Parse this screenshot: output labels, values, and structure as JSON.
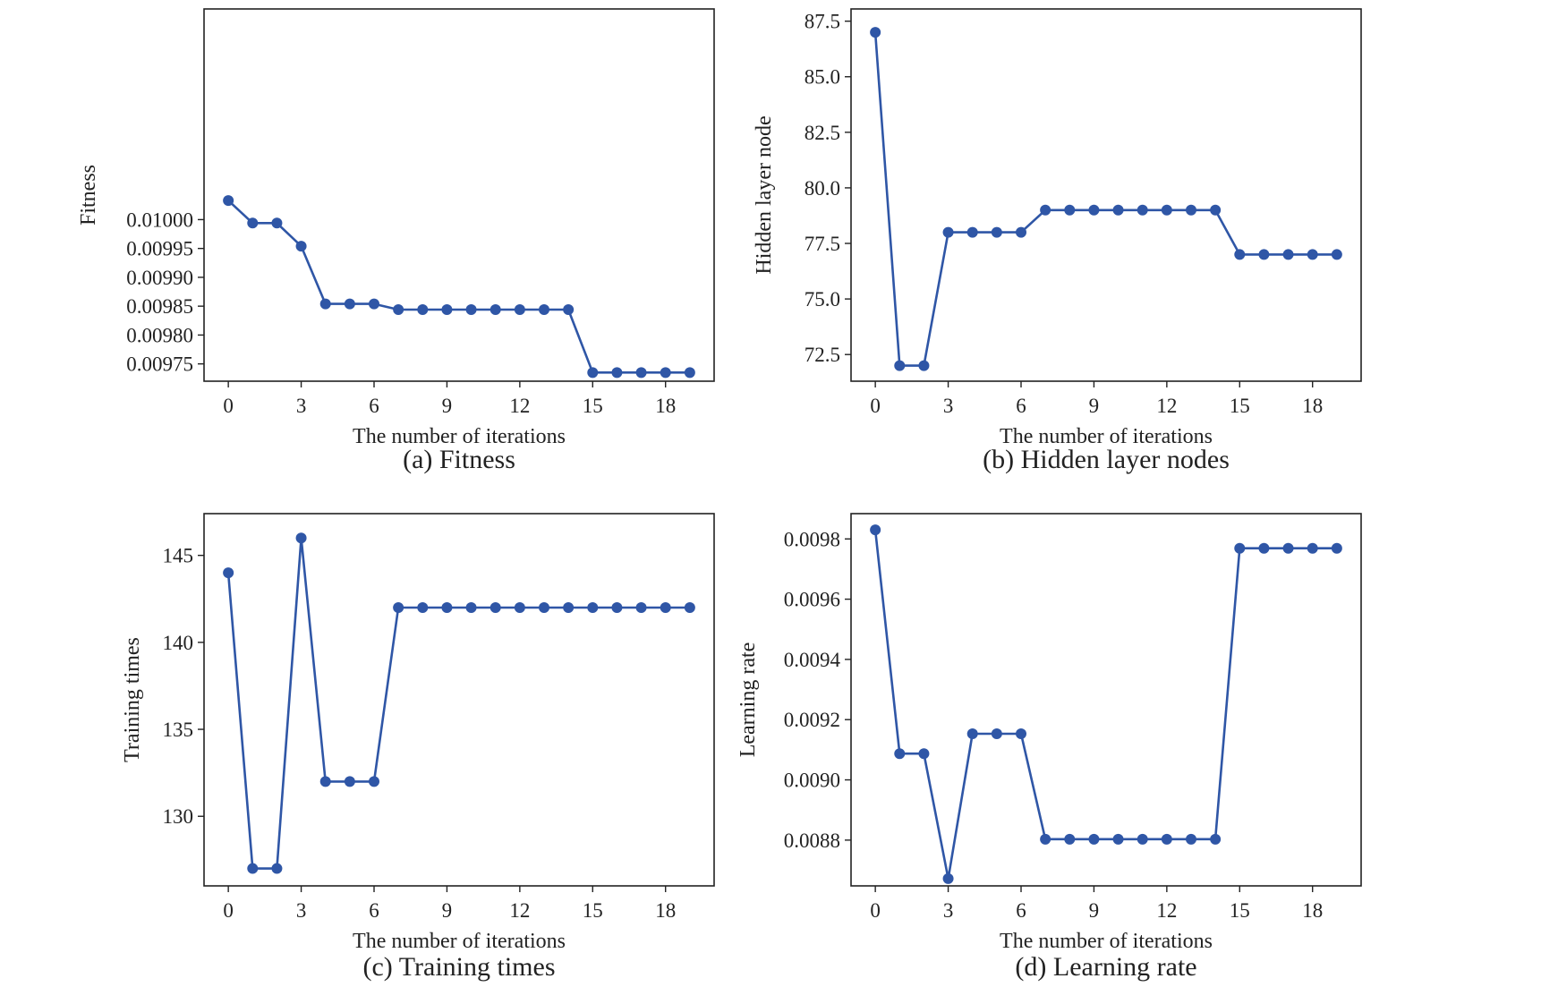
{
  "figure": {
    "colors": {
      "line": "#2f56a6",
      "frame": "#222222",
      "text": "#222222"
    }
  },
  "chart_data": [
    {
      "type": "line",
      "caption": "(a) Fitness",
      "xlabel": "The number of iterations",
      "ylabel": "Fitness",
      "xlim": [
        -1,
        20
      ],
      "ylim": [
        0.00972,
        0.010365
      ],
      "xticks": [
        0,
        3,
        6,
        9,
        12,
        15,
        18
      ],
      "yticks": [
        0.00975,
        0.0098,
        0.00985,
        0.0099,
        0.00995,
        0.01
      ],
      "ytick_labels": [
        "0.00975",
        "0.00980",
        "0.00985",
        "0.00990",
        "0.00995",
        "0.01000"
      ],
      "grid": false,
      "legend": "none",
      "series": [
        {
          "x": [
            0,
            1,
            2,
            3,
            4,
            5,
            6,
            7,
            8,
            9,
            10,
            11,
            12,
            13,
            14,
            15,
            16,
            17,
            18,
            19
          ],
          "values": [
            0.010033,
            0.009994,
            0.009994,
            0.009954,
            0.009854,
            0.009854,
            0.009854,
            0.009844,
            0.009844,
            0.009844,
            0.009844,
            0.009844,
            0.009844,
            0.009844,
            0.009844,
            0.009735,
            0.009735,
            0.009735,
            0.009735,
            0.009735
          ]
        }
      ]
    },
    {
      "type": "line",
      "caption": "(b) Hidden layer nodes",
      "xlabel": "The number of iterations",
      "ylabel": "Hidden layer node",
      "xlim": [
        -1,
        20
      ],
      "ylim": [
        71.3,
        88.05
      ],
      "xticks": [
        0,
        3,
        6,
        9,
        12,
        15,
        18
      ],
      "yticks": [
        72.5,
        75.0,
        77.5,
        80.0,
        82.5,
        85.0,
        87.5
      ],
      "ytick_labels": [
        "72.5",
        "75.0",
        "77.5",
        "80.0",
        "82.5",
        "85.0",
        "87.5"
      ],
      "grid": false,
      "legend": "none",
      "series": [
        {
          "x": [
            0,
            1,
            2,
            3,
            4,
            5,
            6,
            7,
            8,
            9,
            10,
            11,
            12,
            13,
            14,
            15,
            16,
            17,
            18,
            19
          ],
          "values": [
            87,
            72,
            72,
            78,
            78,
            78,
            78,
            79,
            79,
            79,
            79,
            79,
            79,
            79,
            79,
            77,
            77,
            77,
            77,
            77
          ]
        }
      ]
    },
    {
      "type": "line",
      "caption": "(c) Training times",
      "xlabel": "The number of iterations",
      "ylabel": "Training times",
      "xlim": [
        -1,
        20
      ],
      "ylim": [
        126.0,
        147.4
      ],
      "xticks": [
        0,
        3,
        6,
        9,
        12,
        15,
        18
      ],
      "yticks": [
        130,
        135,
        140,
        145
      ],
      "ytick_labels": [
        "130",
        "135",
        "140",
        "145"
      ],
      "grid": false,
      "legend": "none",
      "series": [
        {
          "x": [
            0,
            1,
            2,
            3,
            4,
            5,
            6,
            7,
            8,
            9,
            10,
            11,
            12,
            13,
            14,
            15,
            16,
            17,
            18,
            19
          ],
          "values": [
            144,
            127,
            127,
            146,
            132,
            132,
            132,
            142,
            142,
            142,
            142,
            142,
            142,
            142,
            142,
            142,
            142,
            142,
            142,
            142
          ]
        }
      ]
    },
    {
      "type": "line",
      "caption": "(d) Learning rate",
      "xlabel": "The number of iterations",
      "ylabel": "Learning rate",
      "xlim": [
        -1,
        20
      ],
      "ylim": [
        0.008648,
        0.009884
      ],
      "xticks": [
        0,
        3,
        6,
        9,
        12,
        15,
        18
      ],
      "yticks": [
        0.0088,
        0.009,
        0.0092,
        0.0094,
        0.0096,
        0.0098
      ],
      "ytick_labels": [
        "0.0088",
        "0.0090",
        "0.0092",
        "0.0094",
        "0.0096",
        "0.0098"
      ],
      "grid": false,
      "legend": "none",
      "series": [
        {
          "x": [
            0,
            1,
            2,
            3,
            4,
            5,
            6,
            7,
            8,
            9,
            10,
            11,
            12,
            13,
            14,
            15,
            16,
            17,
            18,
            19
          ],
          "values": [
            0.00983,
            0.009087,
            0.009087,
            0.008672,
            0.009153,
            0.009153,
            0.009153,
            0.008803,
            0.008803,
            0.008803,
            0.008803,
            0.008803,
            0.008803,
            0.008803,
            0.008803,
            0.009769,
            0.009769,
            0.009769,
            0.009769,
            0.009769
          ]
        }
      ]
    }
  ]
}
